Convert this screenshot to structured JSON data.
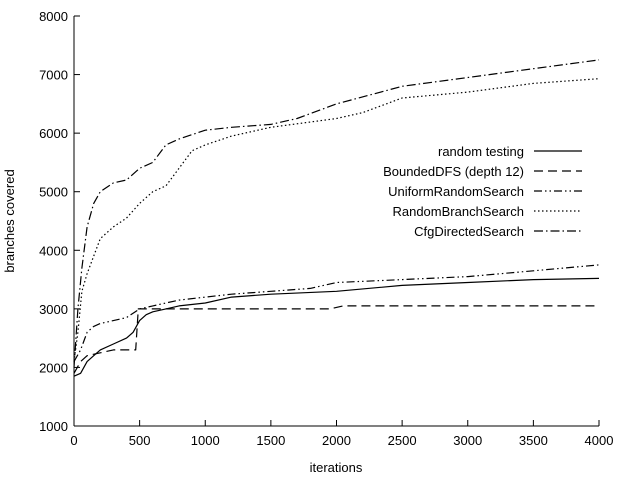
{
  "chart_data": {
    "type": "line",
    "title": "",
    "xlabel": "iterations",
    "ylabel": "branches covered",
    "xlim": [
      0,
      4000
    ],
    "ylim": [
      1000,
      8000
    ],
    "xticks": [
      "0",
      "500",
      "1000",
      "1500",
      "2000",
      "2500",
      "3000",
      "3500",
      "4000"
    ],
    "yticks": [
      "1000",
      "2000",
      "3000",
      "4000",
      "5000",
      "6000",
      "7000",
      "8000"
    ],
    "grid": false,
    "legend_position": "right-middle",
    "series": [
      {
        "name": "random testing",
        "dash": "solid",
        "points": [
          [
            0,
            1850
          ],
          [
            50,
            1900
          ],
          [
            100,
            2100
          ],
          [
            150,
            2200
          ],
          [
            200,
            2300
          ],
          [
            300,
            2400
          ],
          [
            400,
            2500
          ],
          [
            450,
            2600
          ],
          [
            500,
            2800
          ],
          [
            550,
            2900
          ],
          [
            600,
            2950
          ],
          [
            700,
            3000
          ],
          [
            800,
            3050
          ],
          [
            1000,
            3100
          ],
          [
            1200,
            3200
          ],
          [
            1500,
            3250
          ],
          [
            2000,
            3300
          ],
          [
            2500,
            3400
          ],
          [
            3000,
            3450
          ],
          [
            3500,
            3500
          ],
          [
            4000,
            3520
          ]
        ]
      },
      {
        "name": "BoundedDFS (depth 12)",
        "dash": "long-dash",
        "points": [
          [
            0,
            1900
          ],
          [
            50,
            2100
          ],
          [
            100,
            2200
          ],
          [
            200,
            2250
          ],
          [
            300,
            2300
          ],
          [
            470,
            2300
          ],
          [
            490,
            3000
          ],
          [
            600,
            3000
          ],
          [
            800,
            3000
          ],
          [
            1000,
            3000
          ],
          [
            1500,
            3000
          ],
          [
            1950,
            3000
          ],
          [
            2050,
            3050
          ],
          [
            2500,
            3050
          ],
          [
            3000,
            3050
          ],
          [
            3500,
            3050
          ],
          [
            4000,
            3050
          ]
        ]
      },
      {
        "name": "UniformRandomSearch",
        "dash": "dash-dot-dot",
        "points": [
          [
            0,
            2100
          ],
          [
            50,
            2300
          ],
          [
            100,
            2600
          ],
          [
            150,
            2700
          ],
          [
            200,
            2750
          ],
          [
            300,
            2800
          ],
          [
            400,
            2850
          ],
          [
            500,
            3000
          ],
          [
            600,
            3050
          ],
          [
            700,
            3100
          ],
          [
            800,
            3150
          ],
          [
            1000,
            3200
          ],
          [
            1200,
            3250
          ],
          [
            1500,
            3300
          ],
          [
            1800,
            3350
          ],
          [
            2000,
            3450
          ],
          [
            2500,
            3500
          ],
          [
            3000,
            3550
          ],
          [
            3500,
            3650
          ],
          [
            4000,
            3750
          ]
        ]
      },
      {
        "name": "RandomBranchSearch",
        "dash": "dotted",
        "points": [
          [
            0,
            2100
          ],
          [
            30,
            2600
          ],
          [
            60,
            3300
          ],
          [
            100,
            3600
          ],
          [
            150,
            3900
          ],
          [
            200,
            4200
          ],
          [
            300,
            4400
          ],
          [
            400,
            4550
          ],
          [
            500,
            4800
          ],
          [
            600,
            5000
          ],
          [
            700,
            5100
          ],
          [
            800,
            5400
          ],
          [
            900,
            5700
          ],
          [
            1000,
            5800
          ],
          [
            1200,
            5950
          ],
          [
            1500,
            6100
          ],
          [
            2000,
            6250
          ],
          [
            2200,
            6350
          ],
          [
            2500,
            6600
          ],
          [
            3000,
            6700
          ],
          [
            3500,
            6850
          ],
          [
            4000,
            6930
          ]
        ]
      },
      {
        "name": "CfgDirectedSearch",
        "dash": "dash-dot",
        "points": [
          [
            0,
            2000
          ],
          [
            30,
            3000
          ],
          [
            60,
            3700
          ],
          [
            100,
            4400
          ],
          [
            150,
            4800
          ],
          [
            200,
            5000
          ],
          [
            300,
            5150
          ],
          [
            400,
            5200
          ],
          [
            500,
            5400
          ],
          [
            600,
            5500
          ],
          [
            700,
            5800
          ],
          [
            800,
            5900
          ],
          [
            1000,
            6050
          ],
          [
            1200,
            6100
          ],
          [
            1500,
            6150
          ],
          [
            1700,
            6250
          ],
          [
            2000,
            6500
          ],
          [
            2500,
            6800
          ],
          [
            3000,
            6950
          ],
          [
            3500,
            7100
          ],
          [
            4000,
            7250
          ]
        ]
      }
    ]
  }
}
